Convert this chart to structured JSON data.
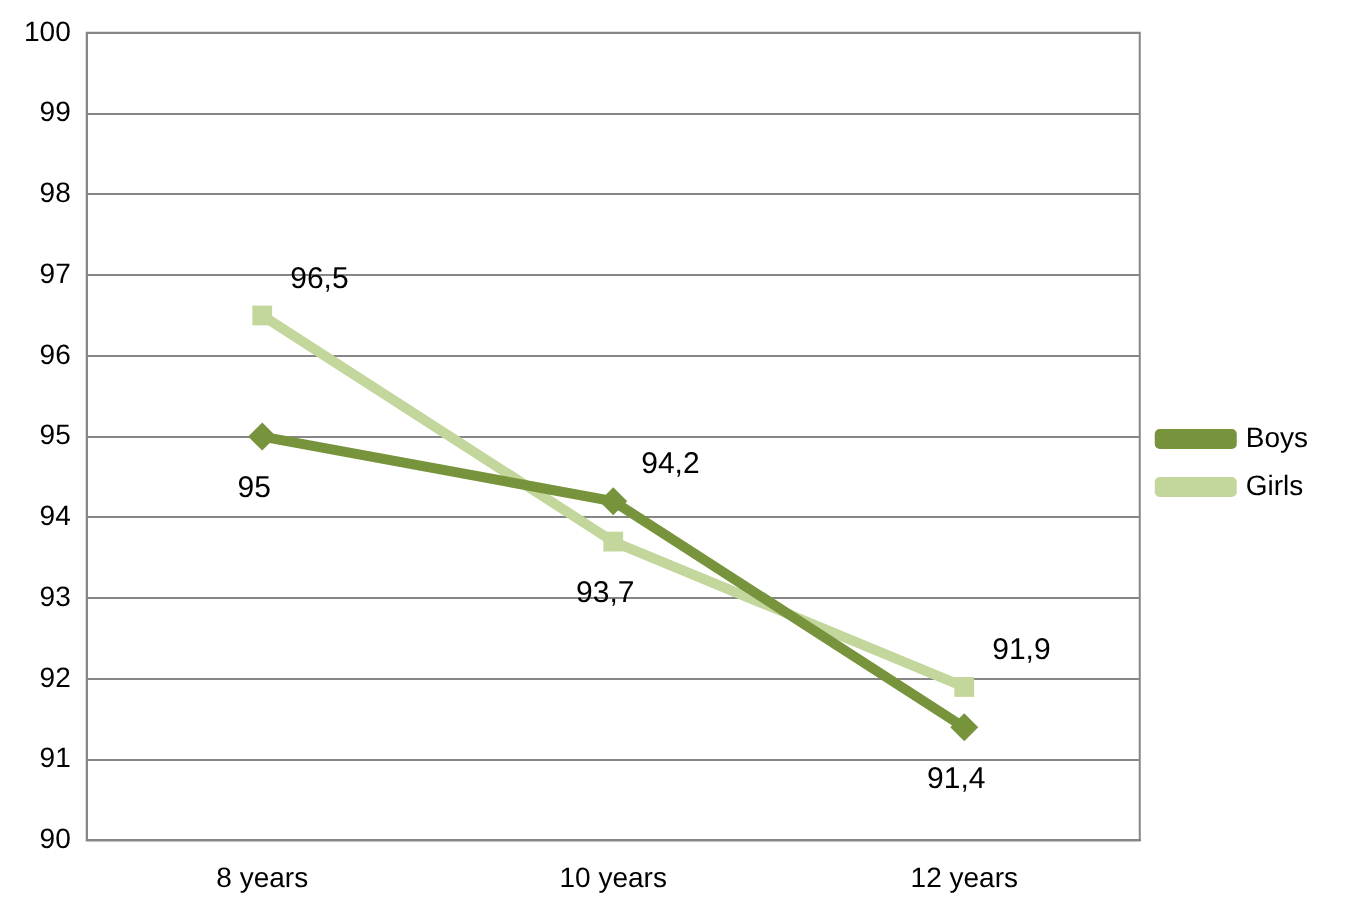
{
  "chart_data": {
    "type": "line",
    "categories": [
      "8 years",
      "10 years",
      "12 years"
    ],
    "series": [
      {
        "name": "Boys",
        "color": "#77933c",
        "values": [
          95,
          94.2,
          91.4
        ],
        "value_labels": [
          "95",
          "94,2",
          "91,4"
        ],
        "marker": "diamond"
      },
      {
        "name": "Girls",
        "color": "#c3d69b",
        "values": [
          96.5,
          93.7,
          91.9
        ],
        "value_labels": [
          "96,5",
          "93,7",
          "91,9"
        ],
        "marker": "square"
      }
    ],
    "ylim": [
      90,
      100
    ],
    "yticks": [
      90,
      91,
      92,
      93,
      94,
      95,
      96,
      97,
      98,
      99,
      100
    ],
    "grid": "y",
    "legend": "right",
    "line_style": "solid"
  }
}
